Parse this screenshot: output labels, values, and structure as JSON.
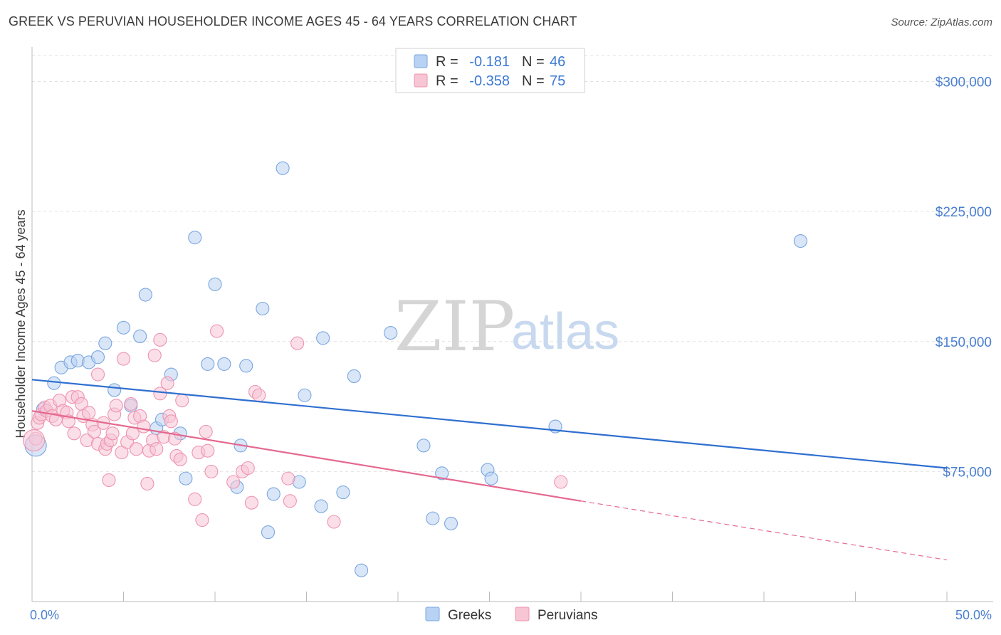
{
  "title": "GREEK VS PERUVIAN HOUSEHOLDER INCOME AGES 45 - 64 YEARS CORRELATION CHART",
  "source": "Source: ZipAtlas.com",
  "watermark": {
    "zip": "ZIP",
    "atlas": "atlas"
  },
  "legend": {
    "rows": [
      {
        "r_label": "R =",
        "r_value": "-0.181",
        "n_label": "N =",
        "n_value": "46",
        "color": "#b8d2f3",
        "stroke": "#7aa6e0"
      },
      {
        "r_label": "R =",
        "r_value": "-0.358",
        "n_label": "N =",
        "n_value": "75",
        "color": "#f8c5d5",
        "stroke": "#ee93b0"
      }
    ]
  },
  "chart_data": {
    "type": "scatter",
    "title": "GREEK VS PERUVIAN HOUSEHOLDER INCOME AGES 45 - 64 YEARS CORRELATION CHART",
    "ylabel": "Householder Income Ages 45 - 64 years",
    "xlabel": "",
    "xlim": [
      0,
      50
    ],
    "ylim": [
      0,
      315000
    ],
    "x_tick_labels": [
      "0.0%",
      "50.0%"
    ],
    "y_ticks": [
      75000,
      150000,
      225000,
      300000
    ],
    "y_tick_labels": [
      "$75,000",
      "$150,000",
      "$225,000",
      "$300,000"
    ],
    "grid": true,
    "legend_position": "bottom-center",
    "series": [
      {
        "name": "Greeks",
        "color": "#b8d2f3",
        "stroke": "#7aa6e0",
        "trend": {
          "x0": 0,
          "y0": 128000,
          "x1": 50,
          "y1": 77000,
          "color": "#2f6fd0"
        },
        "points": [
          [
            0.2,
            90000
          ],
          [
            0.6,
            111000
          ],
          [
            1.2,
            126000
          ],
          [
            1.6,
            135000
          ],
          [
            2.1,
            138000
          ],
          [
            2.5,
            139000
          ],
          [
            3.1,
            138000
          ],
          [
            3.6,
            141000
          ],
          [
            4.0,
            149000
          ],
          [
            4.5,
            122000
          ],
          [
            5.0,
            158000
          ],
          [
            5.4,
            113000
          ],
          [
            5.9,
            153000
          ],
          [
            6.2,
            177000
          ],
          [
            6.8,
            100000
          ],
          [
            7.1,
            105000
          ],
          [
            7.6,
            131000
          ],
          [
            8.1,
            97000
          ],
          [
            8.4,
            71000
          ],
          [
            8.9,
            210000
          ],
          [
            9.6,
            137000
          ],
          [
            10.0,
            183000
          ],
          [
            10.5,
            137000
          ],
          [
            11.2,
            66000
          ],
          [
            11.4,
            90000
          ],
          [
            11.7,
            136000
          ],
          [
            12.6,
            169000
          ],
          [
            12.9,
            40000
          ],
          [
            13.2,
            62000
          ],
          [
            13.7,
            250000
          ],
          [
            14.6,
            69000
          ],
          [
            14.9,
            119000
          ],
          [
            15.8,
            55000
          ],
          [
            15.9,
            152000
          ],
          [
            17.0,
            63000
          ],
          [
            17.6,
            130000
          ],
          [
            18.0,
            18000
          ],
          [
            19.6,
            155000
          ],
          [
            21.4,
            90000
          ],
          [
            21.9,
            48000
          ],
          [
            22.4,
            74000
          ],
          [
            22.9,
            45000
          ],
          [
            24.9,
            76000
          ],
          [
            25.1,
            71000
          ],
          [
            28.6,
            101000
          ],
          [
            42.0,
            208000
          ]
        ]
      },
      {
        "name": "Peruvians",
        "color": "#f8c5d5",
        "stroke": "#ee93b0",
        "trend": {
          "x0": 0,
          "y0": 110000,
          "x1": 30,
          "y1": 58000,
          "color": "#e5688f",
          "dashed_to": {
            "x": 50,
            "y": 24000
          }
        },
        "points": [
          [
            0.2,
            94000
          ],
          [
            0.3,
            103000
          ],
          [
            0.4,
            106000
          ],
          [
            0.5,
            108000
          ],
          [
            0.7,
            112000
          ],
          [
            0.8,
            110000
          ],
          [
            1.0,
            113000
          ],
          [
            1.1,
            107000
          ],
          [
            1.3,
            105000
          ],
          [
            1.5,
            116000
          ],
          [
            1.7,
            110000
          ],
          [
            1.9,
            109000
          ],
          [
            2.0,
            104000
          ],
          [
            2.2,
            118000
          ],
          [
            2.3,
            97000
          ],
          [
            2.5,
            118000
          ],
          [
            2.7,
            114000
          ],
          [
            2.8,
            107000
          ],
          [
            3.0,
            93000
          ],
          [
            3.1,
            109000
          ],
          [
            3.3,
            102000
          ],
          [
            3.4,
            98000
          ],
          [
            3.6,
            91000
          ],
          [
            3.6,
            131000
          ],
          [
            3.9,
            103000
          ],
          [
            4.0,
            88000
          ],
          [
            4.1,
            91000
          ],
          [
            4.2,
            70000
          ],
          [
            4.3,
            93000
          ],
          [
            4.4,
            97000
          ],
          [
            4.5,
            108000
          ],
          [
            4.6,
            113000
          ],
          [
            4.9,
            86000
          ],
          [
            5.0,
            140000
          ],
          [
            5.2,
            92000
          ],
          [
            5.4,
            114000
          ],
          [
            5.5,
            97000
          ],
          [
            5.6,
            106000
          ],
          [
            5.7,
            88000
          ],
          [
            5.9,
            107000
          ],
          [
            6.1,
            101000
          ],
          [
            6.3,
            68000
          ],
          [
            6.4,
            87000
          ],
          [
            6.6,
            93000
          ],
          [
            6.7,
            142000
          ],
          [
            6.8,
            88000
          ],
          [
            7.0,
            151000
          ],
          [
            7.0,
            120000
          ],
          [
            7.2,
            95000
          ],
          [
            7.4,
            126000
          ],
          [
            7.5,
            107000
          ],
          [
            7.6,
            104000
          ],
          [
            7.8,
            94000
          ],
          [
            7.9,
            84000
          ],
          [
            8.1,
            82000
          ],
          [
            8.2,
            116000
          ],
          [
            8.9,
            59000
          ],
          [
            9.1,
            86000
          ],
          [
            9.3,
            47000
          ],
          [
            9.5,
            98000
          ],
          [
            9.6,
            87000
          ],
          [
            9.8,
            75000
          ],
          [
            10.1,
            156000
          ],
          [
            11.0,
            69000
          ],
          [
            11.5,
            75000
          ],
          [
            11.8,
            77000
          ],
          [
            12.0,
            57000
          ],
          [
            12.2,
            121000
          ],
          [
            12.4,
            119000
          ],
          [
            14.0,
            71000
          ],
          [
            14.1,
            58000
          ],
          [
            14.5,
            149000
          ],
          [
            16.5,
            46000
          ],
          [
            28.9,
            69000
          ],
          [
            0.1,
            93000
          ]
        ]
      }
    ]
  }
}
